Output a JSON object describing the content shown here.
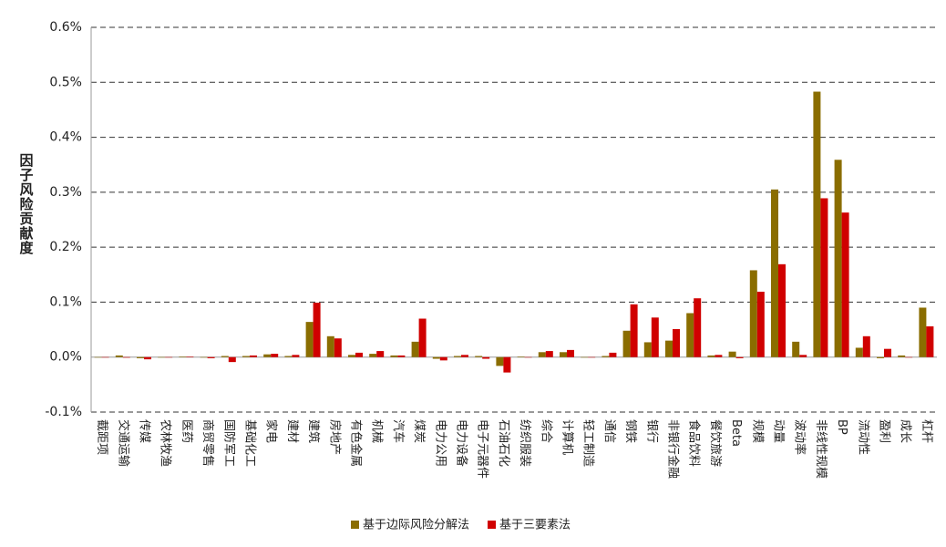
{
  "chart_data": {
    "type": "bar",
    "y_label": "因子风险贡献度",
    "categories": [
      "截距项",
      "交通运输",
      "传媒",
      "农林牧渔",
      "医药",
      "商贸零售",
      "国防军工",
      "基础化工",
      "家电",
      "建材",
      "建筑",
      "房地产",
      "有色金属",
      "机械",
      "汽车",
      "煤炭",
      "电力公用",
      "电力设备",
      "电子元器件",
      "石油石化",
      "纺织服装",
      "综合",
      "计算机",
      "轻工制造",
      "通信",
      "钢铁",
      "银行",
      "非银行金融",
      "食品饮料",
      "餐饮旅游",
      "Beta",
      "规模",
      "动量",
      "波动率",
      "非线性规模",
      "BP",
      "流动性",
      "盈利",
      "成长",
      "杠杆"
    ],
    "series": [
      {
        "name": "基于边际风险分解法",
        "color": "#8a6d00",
        "values": [
          0,
          0.003,
          -0.002,
          0,
          0.001,
          0,
          0.002,
          0.002,
          0.005,
          0.002,
          0.064,
          0.038,
          0.004,
          0.006,
          0.003,
          0.028,
          -0.003,
          0.002,
          0.002,
          -0.016,
          0.001,
          0.009,
          0.009,
          0,
          0.002,
          0.048,
          0.027,
          0.03,
          0.08,
          0.003,
          0.01,
          0.158,
          0.305,
          0.028,
          0.483,
          0.359,
          0.017,
          -0.002,
          0.003,
          0.09
        ]
      },
      {
        "name": "基于三要素法",
        "color": "#d00000",
        "values": [
          0,
          -0.001,
          -0.004,
          0,
          0.001,
          -0.002,
          -0.009,
          0.003,
          0.006,
          0.004,
          0.099,
          0.034,
          0.008,
          0.011,
          0.003,
          0.07,
          -0.006,
          0.004,
          -0.003,
          -0.028,
          0,
          0.011,
          0.013,
          0,
          0.008,
          0.096,
          0.072,
          0.051,
          0.107,
          0.004,
          -0.002,
          0.119,
          0.169,
          0.004,
          0.289,
          0.263,
          0.038,
          0.015,
          0,
          0.056
        ]
      }
    ],
    "ylim": [
      -0.1,
      0.6
    ],
    "yticks": [
      {
        "value": -0.1,
        "label": "-0.1%"
      },
      {
        "value": 0,
        "label": "0.0%"
      },
      {
        "value": 0.1,
        "label": "0.1%"
      },
      {
        "value": 0.2,
        "label": "0.2%"
      },
      {
        "value": 0.3,
        "label": "0.3%"
      },
      {
        "value": 0.4,
        "label": "0.4%"
      },
      {
        "value": 0.5,
        "label": "0.5%"
      },
      {
        "value": 0.6,
        "label": "0.6%"
      }
    ],
    "grid": true
  }
}
